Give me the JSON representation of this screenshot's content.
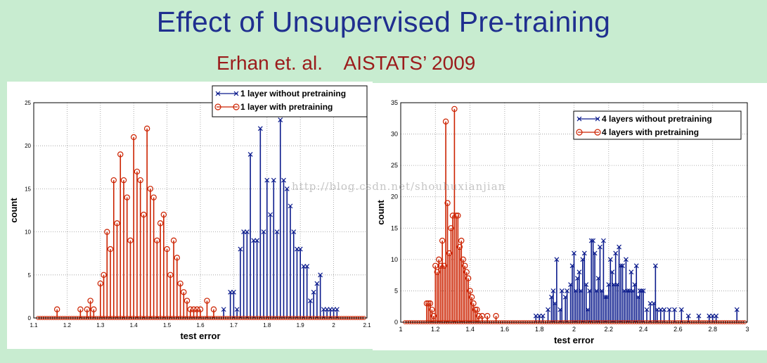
{
  "slide": {
    "title": "Effect of Unsupervised Pre-training",
    "subtitle": "Erhan et. al.    AISTATS’ 2009",
    "watermark": "http://blog.csdn.net/shouhuxianjian"
  },
  "colors": {
    "background": "#c8ecd0",
    "title": "#1f2f8f",
    "subtitle": "#9b1b1b",
    "without": "#0a1a8c",
    "with": "#cc2200"
  },
  "chart_data": [
    {
      "type": "stem",
      "title": "",
      "xlabel": "test error",
      "ylabel": "count",
      "xlim": [
        1.1,
        2.1
      ],
      "ylim": [
        0,
        25
      ],
      "xticks": [
        "1.1",
        "1.2",
        "1.3",
        "1.4",
        "1.5",
        "1.6",
        "1.7",
        "1.8",
        "1.9",
        "2",
        "2.1"
      ],
      "yticks": [
        "0",
        "5",
        "10",
        "15",
        "20",
        "25"
      ],
      "grid": true,
      "legend_position": "top-right",
      "series": [
        {
          "name": "1 layer without pretraining",
          "marker": "x",
          "color": "#0a1a8c",
          "x": [
            1.67,
            1.69,
            1.7,
            1.71,
            1.72,
            1.73,
            1.74,
            1.75,
            1.76,
            1.77,
            1.78,
            1.79,
            1.8,
            1.81,
            1.82,
            1.83,
            1.84,
            1.85,
            1.86,
            1.87,
            1.88,
            1.89,
            1.9,
            1.91,
            1.92,
            1.93,
            1.94,
            1.95,
            1.96,
            1.97,
            1.98,
            1.99,
            2.0,
            2.01
          ],
          "y": [
            1,
            3,
            3,
            1,
            8,
            10,
            10,
            19,
            9,
            9,
            22,
            10,
            16,
            12,
            16,
            10,
            23,
            16,
            15,
            13,
            10,
            8,
            8,
            6,
            6,
            2,
            3,
            4,
            5,
            1,
            1,
            1,
            1,
            1
          ]
        },
        {
          "name": "1 layer with pretraining",
          "marker": "o",
          "color": "#cc2200",
          "x": [
            1.17,
            1.24,
            1.26,
            1.27,
            1.28,
            1.3,
            1.31,
            1.32,
            1.33,
            1.34,
            1.35,
            1.36,
            1.37,
            1.38,
            1.39,
            1.4,
            1.41,
            1.42,
            1.43,
            1.44,
            1.45,
            1.46,
            1.47,
            1.48,
            1.49,
            1.5,
            1.51,
            1.52,
            1.53,
            1.54,
            1.55,
            1.56,
            1.57,
            1.58,
            1.59,
            1.6,
            1.62,
            1.64
          ],
          "y": [
            1,
            1,
            1,
            2,
            1,
            4,
            5,
            10,
            8,
            16,
            11,
            19,
            16,
            14,
            9,
            21,
            17,
            16,
            12,
            22,
            15,
            14,
            9,
            11,
            12,
            8,
            5,
            9,
            7,
            4,
            3,
            2,
            1,
            1,
            1,
            1,
            2,
            1
          ]
        }
      ]
    },
    {
      "type": "stem",
      "title": "",
      "xlabel": "test error",
      "ylabel": "count",
      "xlim": [
        1.0,
        3.0
      ],
      "ylim": [
        0,
        35
      ],
      "xticks": [
        "1",
        "1.2",
        "1.4",
        "1.6",
        "1.8",
        "2",
        "2.2",
        "2.4",
        "2.6",
        "2.8",
        "3"
      ],
      "yticks": [
        "0",
        "5",
        "10",
        "15",
        "20",
        "25",
        "30",
        "35"
      ],
      "grid": true,
      "legend_position": "top-right",
      "series": [
        {
          "name": "4 layers without pretraining",
          "marker": "x",
          "color": "#0a1a8c",
          "x": [
            1.78,
            1.8,
            1.82,
            1.85,
            1.87,
            1.88,
            1.89,
            1.9,
            1.92,
            1.93,
            1.95,
            1.96,
            1.98,
            1.99,
            2.0,
            2.01,
            2.02,
            2.03,
            2.04,
            2.05,
            2.06,
            2.07,
            2.08,
            2.09,
            2.1,
            2.11,
            2.12,
            2.13,
            2.14,
            2.15,
            2.16,
            2.17,
            2.18,
            2.19,
            2.2,
            2.21,
            2.22,
            2.23,
            2.24,
            2.25,
            2.26,
            2.27,
            2.28,
            2.29,
            2.3,
            2.31,
            2.32,
            2.33,
            2.34,
            2.35,
            2.36,
            2.37,
            2.38,
            2.39,
            2.4,
            2.42,
            2.44,
            2.46,
            2.47,
            2.48,
            2.5,
            2.52,
            2.55,
            2.58,
            2.62,
            2.66,
            2.72,
            2.78,
            2.8,
            2.82,
            2.94
          ],
          "y": [
            1,
            1,
            1,
            2,
            4,
            5,
            3,
            10,
            2,
            5,
            4,
            5,
            6,
            9,
            11,
            5,
            7,
            8,
            5,
            10,
            11,
            6,
            2,
            5,
            13,
            13,
            11,
            5,
            7,
            12,
            5,
            13,
            4,
            4,
            6,
            10,
            8,
            6,
            11,
            6,
            12,
            9,
            9,
            5,
            10,
            5,
            5,
            8,
            5,
            6,
            9,
            4,
            5,
            5,
            5,
            2,
            3,
            3,
            9,
            2,
            2,
            2,
            2,
            2,
            2,
            1,
            1,
            1,
            1,
            1,
            2
          ]
        },
        {
          "name": "4 layers with pretraining",
          "marker": "o",
          "color": "#cc2200",
          "x": [
            1.15,
            1.16,
            1.17,
            1.18,
            1.19,
            1.2,
            1.21,
            1.22,
            1.23,
            1.24,
            1.25,
            1.26,
            1.27,
            1.28,
            1.29,
            1.3,
            1.31,
            1.32,
            1.33,
            1.34,
            1.35,
            1.36,
            1.37,
            1.38,
            1.39,
            1.4,
            1.41,
            1.42,
            1.43,
            1.44,
            1.45,
            1.47,
            1.5,
            1.55
          ],
          "y": [
            3,
            3,
            3,
            2,
            1,
            9,
            8,
            10,
            9,
            13,
            9,
            32,
            19,
            11,
            15,
            17,
            34,
            17,
            17,
            12,
            13,
            10,
            9,
            8,
            7,
            5,
            4,
            3,
            2,
            2,
            1,
            1,
            1,
            1
          ]
        }
      ]
    }
  ]
}
